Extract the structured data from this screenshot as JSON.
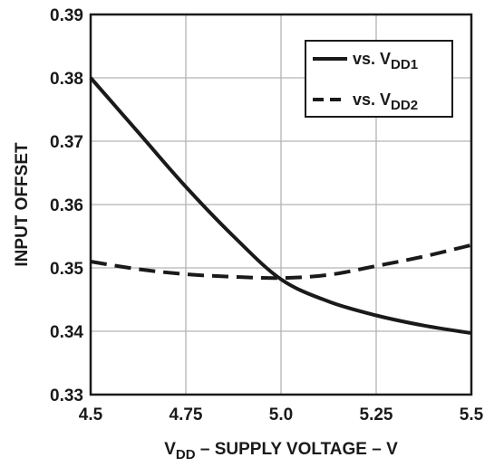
{
  "chart_data": {
    "type": "line",
    "xlabel": "V_DD – SUPPLY VOLTAGE – V",
    "xlabel_parts": {
      "main": "V",
      "sub": "DD",
      "rest": " – SUPPLY VOLTAGE – V"
    },
    "ylabel": "INPUT OFFSET",
    "xlim": [
      4.5,
      5.5
    ],
    "ylim": [
      0.33,
      0.39
    ],
    "x_ticks": [
      "4.5",
      "4.75",
      "5.0",
      "5.25",
      "5.5"
    ],
    "y_ticks": [
      "0.39",
      "0.38",
      "0.37",
      "0.36",
      "0.35",
      "0.34",
      "0.33"
    ],
    "grid": true,
    "legend_position": "top-right",
    "x": [
      4.5,
      4.625,
      4.75,
      4.875,
      5.0,
      5.125,
      5.25,
      5.375,
      5.5
    ],
    "series": [
      {
        "name": "vs. V_DD1",
        "name_parts": {
          "main": "vs. V",
          "sub": "DD1"
        },
        "style": "solid",
        "color": "#1a1a1a",
        "values": [
          0.38,
          0.3714,
          0.3628,
          0.355,
          0.3482,
          0.3447,
          0.3425,
          0.3409,
          0.3397
        ]
      },
      {
        "name": "vs. V_DD2",
        "name_parts": {
          "main": "vs. V",
          "sub": "DD2"
        },
        "style": "dashed",
        "color": "#1a1a1a",
        "values": [
          0.351,
          0.3498,
          0.349,
          0.3486,
          0.3484,
          0.3489,
          0.3503,
          0.3518,
          0.3536
        ]
      }
    ]
  }
}
